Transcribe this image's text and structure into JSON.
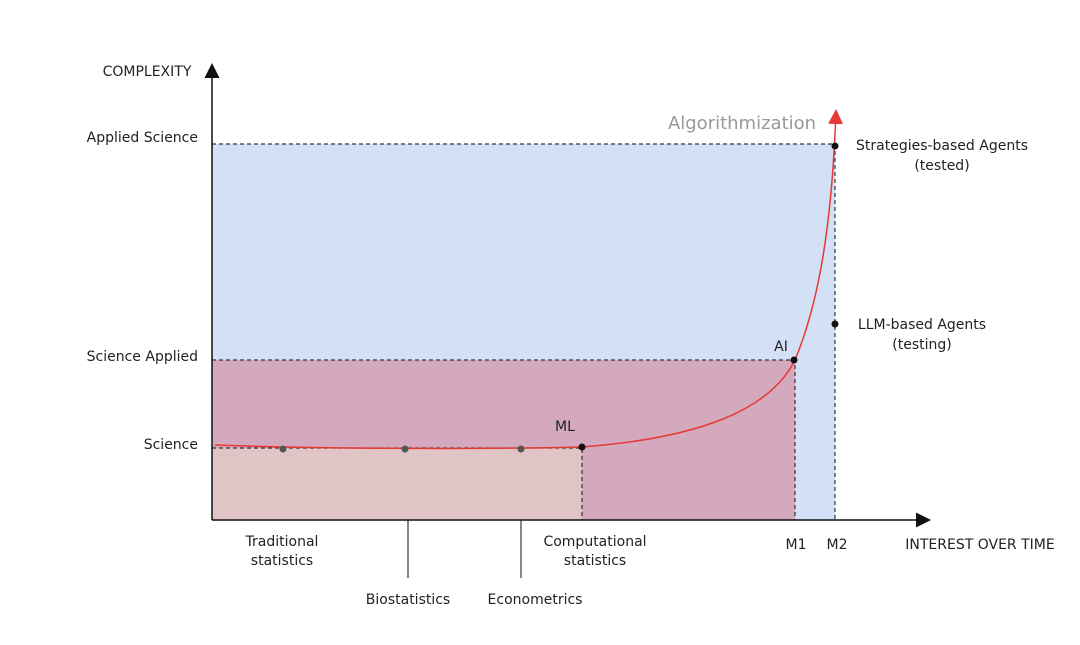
{
  "axes": {
    "y_label": "COMPLEXITY",
    "x_label": "INTEREST OVER TIME"
  },
  "levels": [
    "Applied Science",
    "Science Applied",
    "Science"
  ],
  "annotation": "Algorithmization",
  "points": {
    "ml": "ML",
    "ai": "AI",
    "strategies": [
      "Strategies-based Agents",
      "(tested)"
    ],
    "llm": [
      "LLM-based Agents",
      "(testing)"
    ]
  },
  "x_labels": {
    "traditional": [
      "Traditional",
      "statistics"
    ],
    "biostatistics": "Biostatistics",
    "econometrics": "Econometrics",
    "computational": [
      "Computational",
      "statistics"
    ],
    "m1": "M1",
    "m2": "M2"
  }
}
